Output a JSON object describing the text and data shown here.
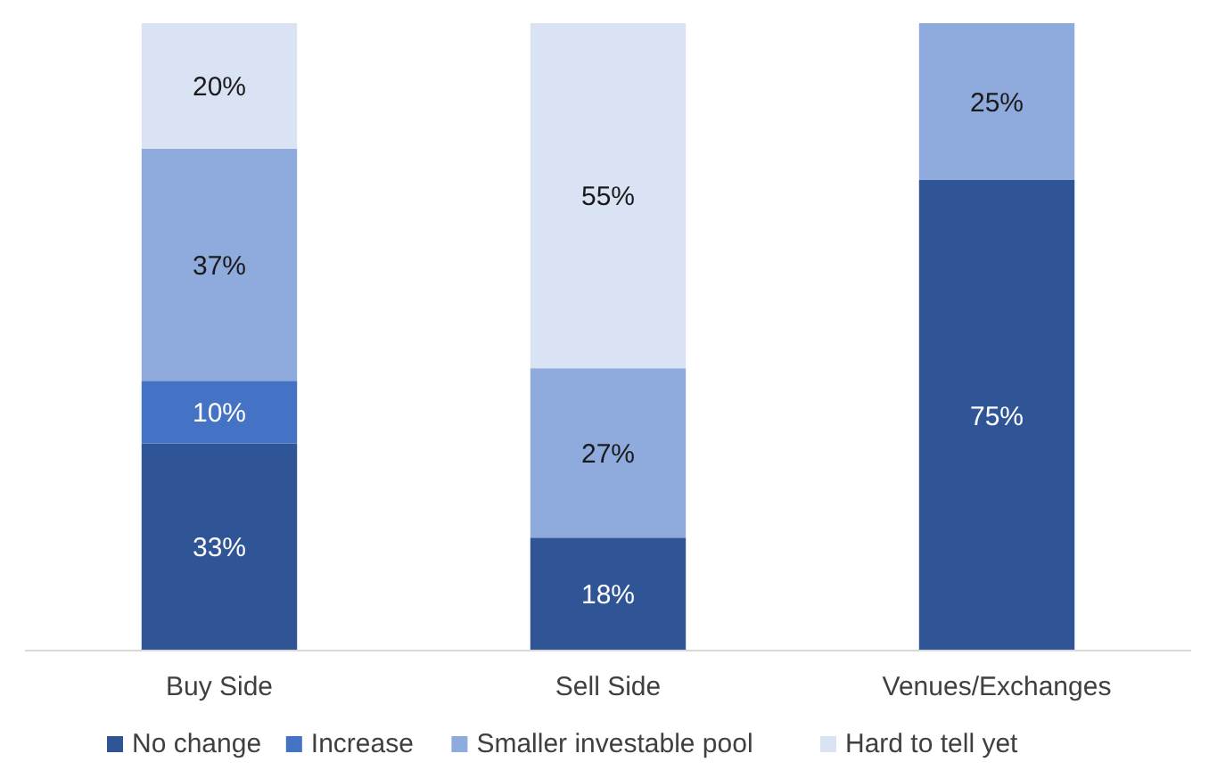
{
  "chart_data": {
    "type": "bar",
    "stacked": true,
    "categories": [
      "Buy Side",
      "Sell Side",
      "Venues/Exchanges"
    ],
    "tick_labels": "x",
    "legend": "bottom",
    "series": [
      {
        "name": "No change",
        "color": "#2f5597",
        "values": [
          33,
          18,
          75
        ],
        "value_labels": [
          "33%",
          "18%",
          "75%"
        ]
      },
      {
        "name": "Increase",
        "color": "#4472c4",
        "values": [
          10,
          null,
          null
        ],
        "value_labels": [
          "10%",
          null,
          null
        ]
      },
      {
        "name": "Smaller investable pool",
        "color": "#8faadc",
        "values": [
          37,
          27,
          25
        ],
        "value_labels": [
          "37%",
          "27%",
          "25%"
        ]
      },
      {
        "name": "Hard to tell yet",
        "color": "#dae3f3",
        "values": [
          20,
          55,
          null
        ],
        "value_labels": [
          "20%",
          "55%",
          null
        ]
      }
    ]
  }
}
